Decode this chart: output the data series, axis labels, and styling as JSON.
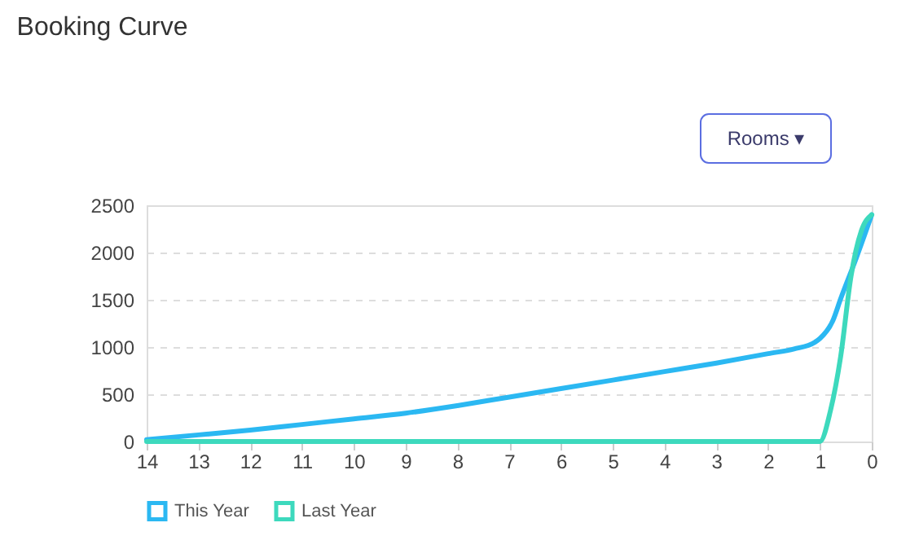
{
  "chart_data": {
    "type": "line",
    "title": "Booking Curve",
    "annotations": [
      "Rooms ▾"
    ],
    "xlim": [
      14,
      0
    ],
    "xticks": [
      14,
      13,
      12,
      11,
      10,
      9,
      8,
      7,
      6,
      5,
      4,
      3,
      2,
      1,
      0
    ],
    "ylim": [
      0,
      2500
    ],
    "yticks": [
      0,
      500,
      1000,
      1500,
      2000,
      2500
    ],
    "grid": "y",
    "legend": "bottom",
    "marker": "none",
    "line_style": "solid",
    "series": [
      {
        "name": "This Year",
        "color": "#2bb8f2",
        "x": [
          14,
          13,
          12,
          11,
          10,
          9,
          8,
          7,
          6,
          5,
          4,
          3,
          2,
          1.5,
          1.1,
          1,
          0.75,
          0.6,
          0.3,
          0
        ],
        "values": [
          20,
          70,
          120,
          180,
          240,
          300,
          380,
          470,
          560,
          650,
          740,
          830,
          930,
          980,
          1050,
          1090,
          1280,
          1510,
          1940,
          2400
        ]
      },
      {
        "name": "Last Year",
        "color": "#3dd9bd",
        "x": [
          14,
          13,
          12,
          11,
          10,
          9,
          8,
          7,
          6,
          5,
          4,
          3,
          2,
          1,
          0.8,
          0.6,
          0.4,
          0.2,
          0
        ],
        "values": [
          0,
          0,
          0,
          0,
          0,
          0,
          0,
          0,
          0,
          0,
          0,
          0,
          0,
          0,
          320,
          900,
          1750,
          2230,
          2400
        ]
      }
    ]
  }
}
